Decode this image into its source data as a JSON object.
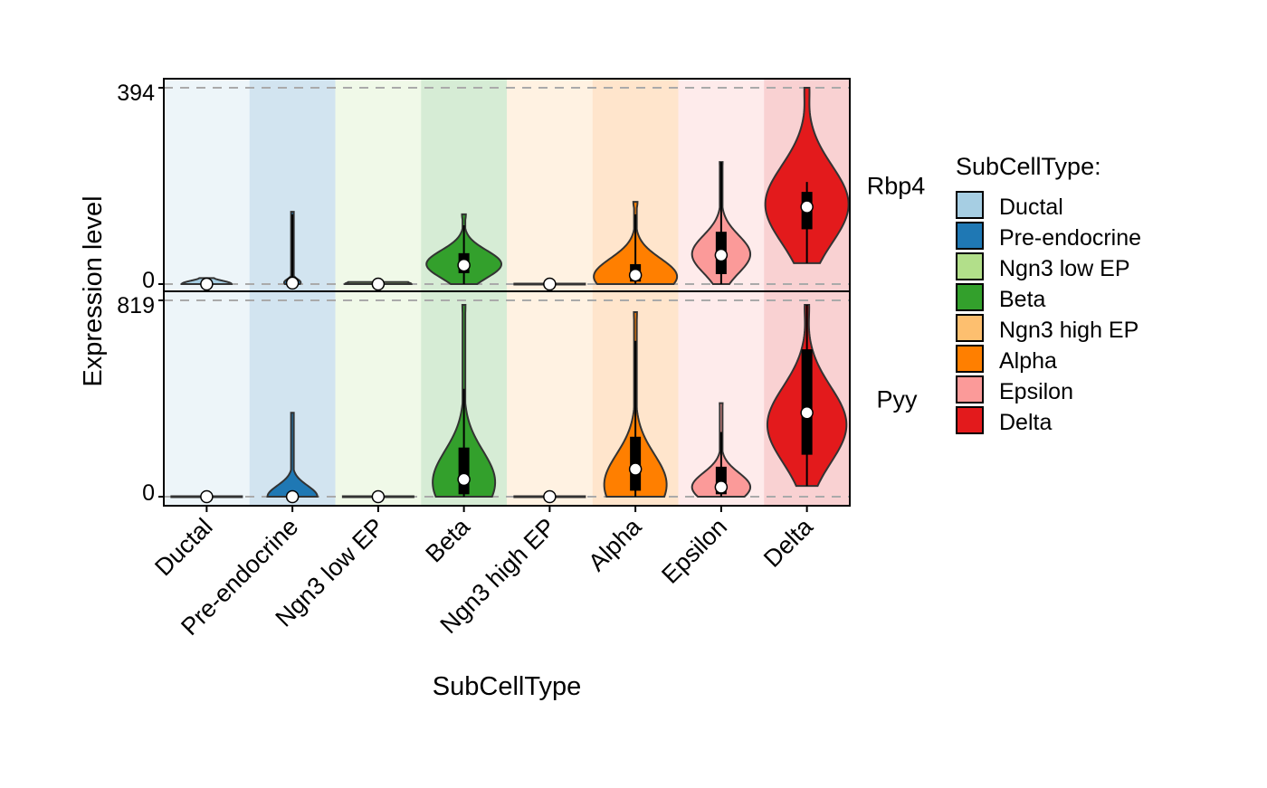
{
  "chart_data": {
    "type": "violin",
    "xlabel": "SubCellType",
    "ylabel": "Expression level",
    "categories": [
      "Ductal",
      "Pre-endocrine",
      "Ngn3 low EP",
      "Beta",
      "Ngn3 high EP",
      "Alpha",
      "Epsilon",
      "Delta"
    ],
    "colors": [
      "#a6cee3",
      "#1f78b4",
      "#b2df8a",
      "#33a02c",
      "#fdbf6f",
      "#ff7f00",
      "#fb9a99",
      "#e31a1c"
    ],
    "legend": {
      "title": "SubCellType:",
      "position": "right",
      "entries": [
        "Ductal",
        "Pre-endocrine",
        "Ngn3 low EP",
        "Beta",
        "Ngn3 high EP",
        "Alpha",
        "Epsilon",
        "Delta"
      ]
    },
    "grid": false,
    "panels": [
      {
        "gene": "Rbp4",
        "ylim": [
          0,
          394
        ],
        "tick_labels": [
          "0",
          "394"
        ],
        "median": [
          0,
          2,
          0,
          38,
          0,
          18,
          58,
          155
        ],
        "q1": [
          0,
          0,
          0,
          22,
          0,
          5,
          20,
          110
        ],
        "q3": [
          0,
          4,
          0,
          62,
          0,
          40,
          105,
          185
        ],
        "whisker_low": [
          0,
          0,
          0,
          0,
          0,
          0,
          0,
          42
        ],
        "whisker_high": [
          10,
          140,
          3,
          118,
          0,
          140,
          245,
          205
        ],
        "max": [
          12,
          145,
          4,
          140,
          0,
          165,
          245,
          394
        ],
        "min": [
          0,
          0,
          0,
          0,
          0,
          0,
          0,
          42
        ],
        "peak": [
          0,
          3,
          0,
          40,
          0,
          15,
          60,
          160
        ],
        "spread": [
          0.6,
          0.2,
          0.8,
          0.9,
          0.8,
          1.0,
          0.7,
          1.0
        ]
      },
      {
        "gene": "Pyy",
        "ylim": [
          0,
          819
        ],
        "tick_labels": [
          "0",
          "819"
        ],
        "median": [
          0,
          0,
          0,
          72,
          0,
          115,
          40,
          350
        ],
        "q1": [
          0,
          0,
          0,
          10,
          0,
          25,
          10,
          175
        ],
        "q3": [
          0,
          0,
          0,
          205,
          0,
          250,
          125,
          615
        ],
        "whisker_low": [
          0,
          0,
          0,
          0,
          0,
          0,
          0,
          45
        ],
        "whisker_high": [
          0,
          5,
          0,
          450,
          0,
          650,
          270,
          800
        ],
        "max": [
          0,
          350,
          0,
          800,
          0,
          770,
          390,
          800
        ],
        "min": [
          0,
          0,
          0,
          0,
          0,
          0,
          0,
          45
        ],
        "peak": [
          0,
          0,
          0,
          60,
          0,
          50,
          40,
          300
        ],
        "spread": [
          1.0,
          0.6,
          1.0,
          0.75,
          1.0,
          0.75,
          0.7,
          0.95
        ]
      }
    ]
  }
}
